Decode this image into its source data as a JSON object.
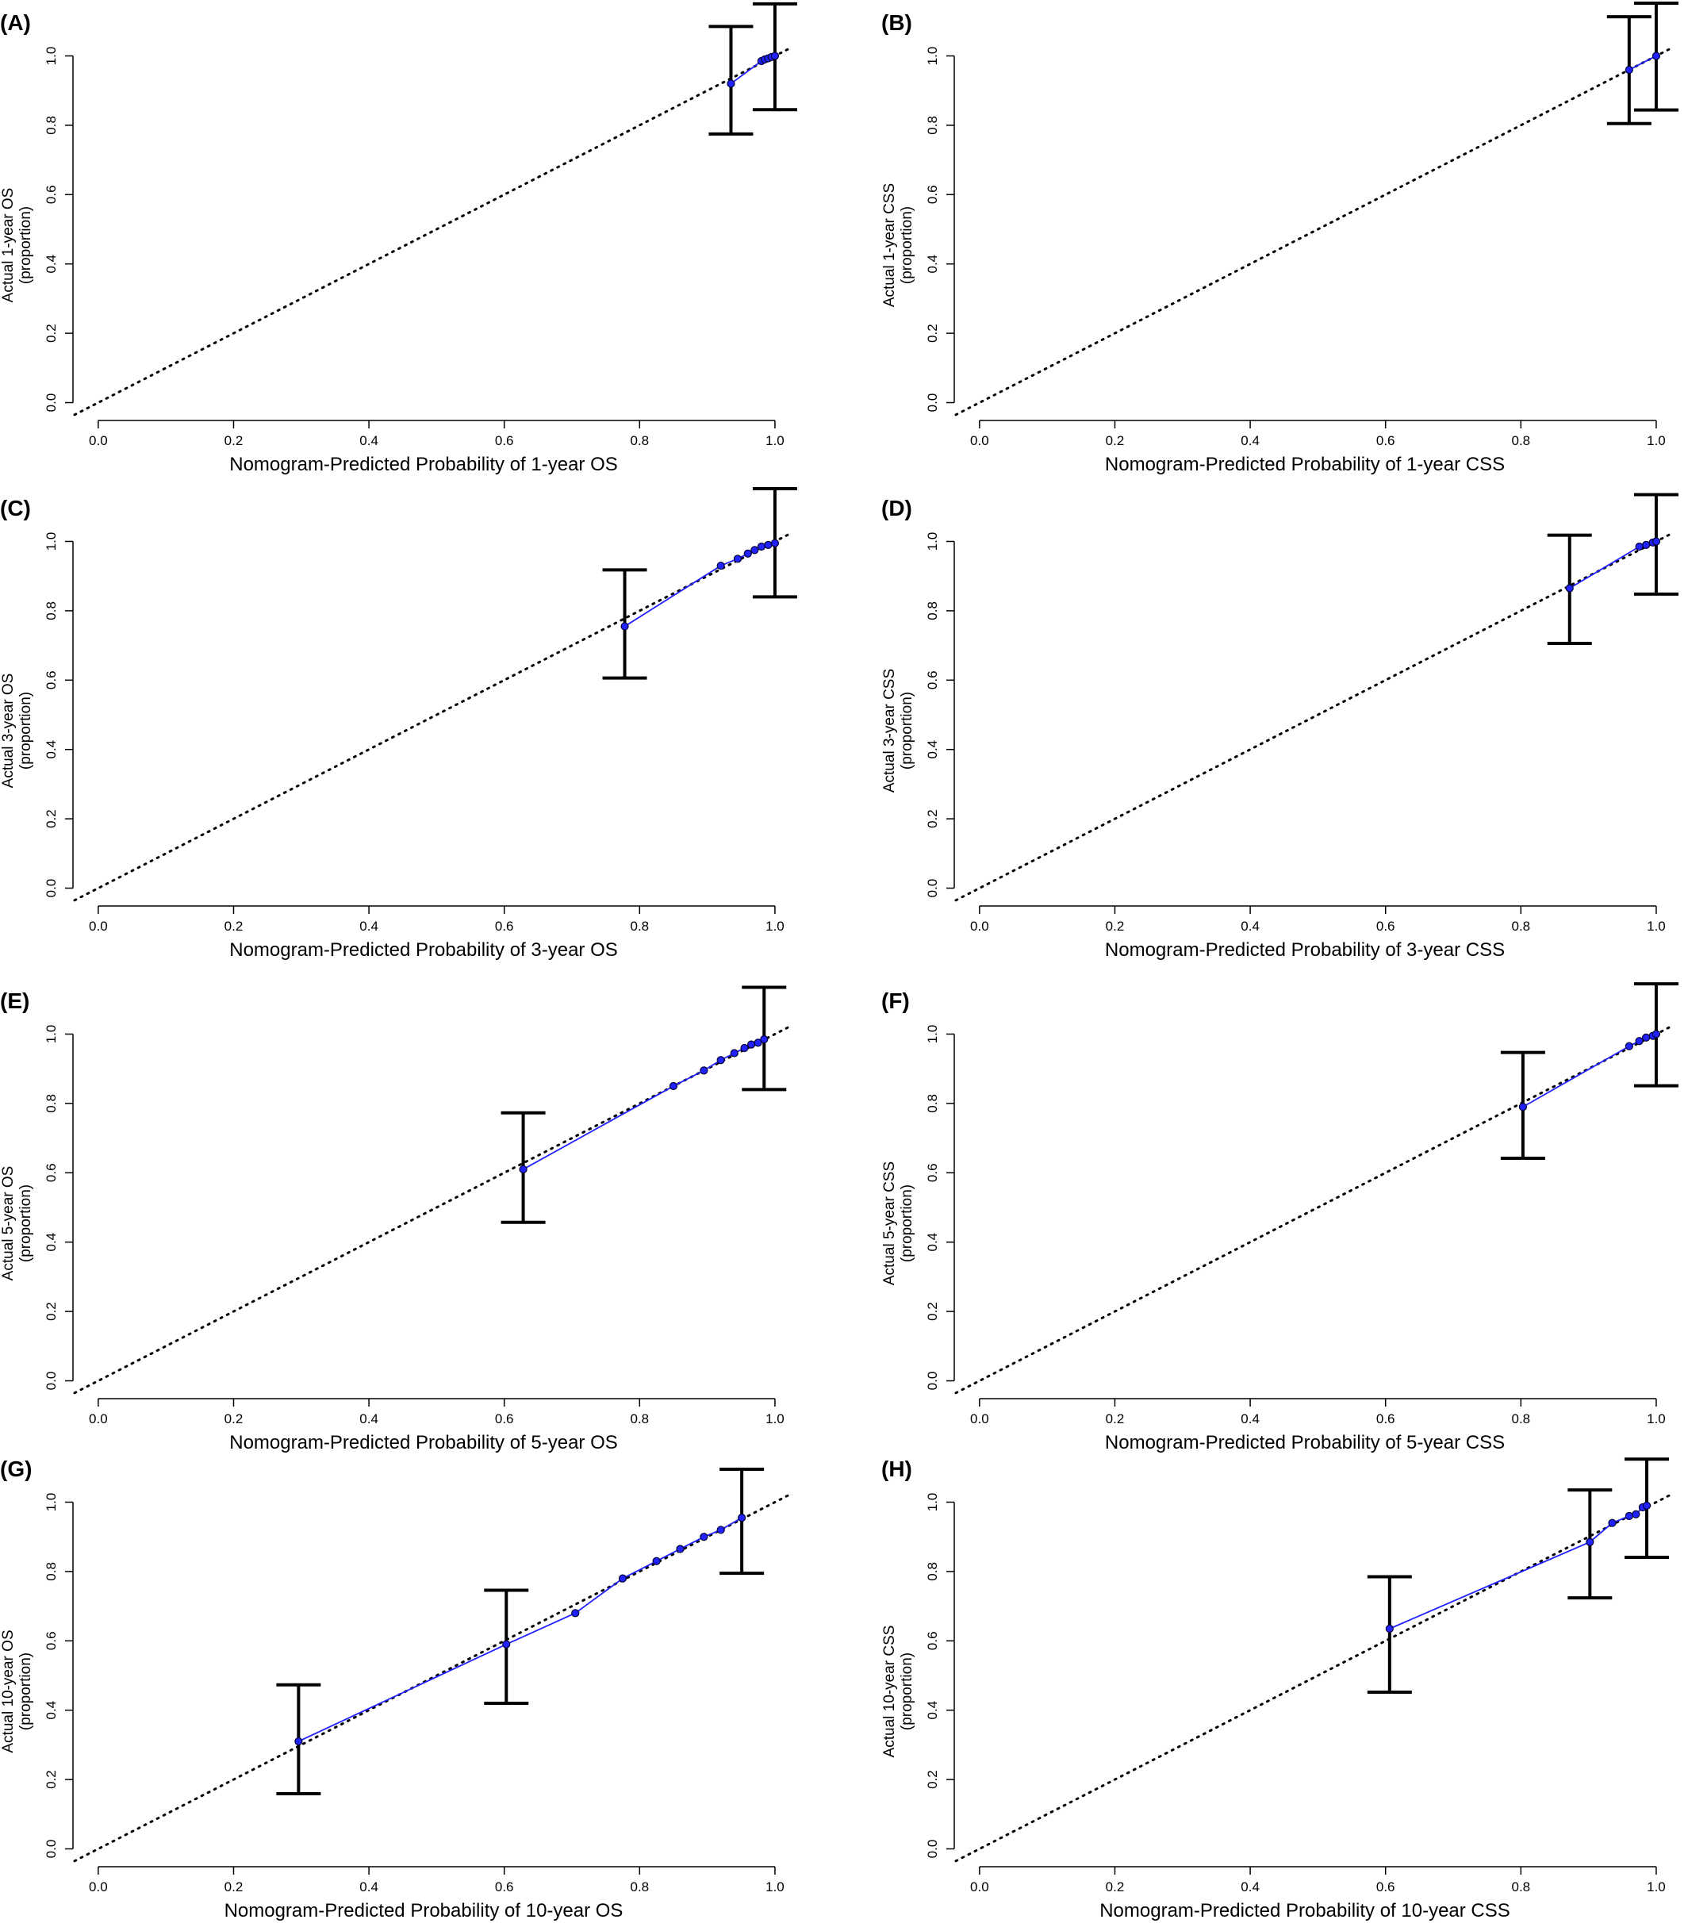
{
  "chart_data": [
    {
      "type": "line",
      "panel_label": "(A)",
      "xlabel": "Nomogram-Predicted Probability of 1-year OS",
      "ylabel": [
        "Actual 1-year OS",
        "(proportion)"
      ],
      "x": [
        0.935,
        0.98,
        0.985,
        0.99,
        0.995,
        1.0
      ],
      "values": [
        0.92,
        0.985,
        0.99,
        0.993,
        0.997,
        1.0
      ],
      "errorbars": {
        "x": [
          0.935,
          1.0
        ],
        "lower": [
          0.775,
          0.845
        ],
        "upper": [
          1.085,
          1.15
        ]
      },
      "color": "#2222ff",
      "diagonal": true,
      "xlim": [
        -0.035,
        1.02
      ],
      "ylim": [
        -0.04,
        1.04
      ],
      "xticks": [
        {
          "value": 0,
          "label": "0.0"
        },
        0.2,
        0.4,
        0.6,
        0.8,
        {
          "value": 1,
          "label": "1.0"
        }
      ],
      "yticks": [
        {
          "value": 0,
          "label": "0.0"
        },
        0.2,
        0.4,
        0.6,
        0.8,
        {
          "value": 1,
          "label": "1.0"
        }
      ]
    },
    {
      "type": "line",
      "panel_label": "(B)",
      "xlabel": "Nomogram-Predicted Probability of 1-year CSS",
      "ylabel": [
        "Actual 1-year CSS",
        "(proportion)"
      ],
      "x": [
        0.96,
        1.0
      ],
      "values": [
        0.96,
        1.0
      ],
      "errorbars": {
        "x": [
          0.96,
          1.0
        ],
        "lower": [
          0.805,
          0.844
        ],
        "upper": [
          1.113,
          1.152
        ]
      },
      "color": "#2222ff",
      "diagonal": true,
      "xlim": [
        -0.035,
        1.02
      ],
      "ylim": [
        -0.04,
        1.04
      ],
      "xticks": [
        {
          "value": 0,
          "label": "0.0"
        },
        0.2,
        0.4,
        0.6,
        0.8,
        {
          "value": 1,
          "label": "1.0"
        }
      ],
      "yticks": [
        {
          "value": 0,
          "label": "0.0"
        },
        0.2,
        0.4,
        0.6,
        0.8,
        {
          "value": 1,
          "label": "1.0"
        }
      ]
    },
    {
      "type": "line",
      "panel_label": "(C)",
      "xlabel": "Nomogram-Predicted Probability of 3-year OS",
      "ylabel": [
        "Actual 3-year OS",
        "(proportion)"
      ],
      "x": [
        0.778,
        0.92,
        0.945,
        0.96,
        0.97,
        0.98,
        0.99,
        1.0
      ],
      "values": [
        0.755,
        0.93,
        0.95,
        0.965,
        0.975,
        0.985,
        0.99,
        0.995
      ],
      "errorbars": {
        "x": [
          0.778,
          1.0
        ],
        "lower": [
          0.606,
          0.84
        ],
        "upper": [
          0.918,
          1.152
        ]
      },
      "color": "#2222ff",
      "diagonal": true,
      "xlim": [
        -0.035,
        1.02
      ],
      "ylim": [
        -0.04,
        1.04
      ],
      "xticks": [
        {
          "value": 0,
          "label": "0.0"
        },
        0.2,
        0.4,
        0.6,
        0.8,
        {
          "value": 1,
          "label": "1.0"
        }
      ],
      "yticks": [
        {
          "value": 0,
          "label": "0.0"
        },
        0.2,
        0.4,
        0.6,
        0.8,
        {
          "value": 1,
          "label": "1.0"
        }
      ]
    },
    {
      "type": "line",
      "panel_label": "(D)",
      "xlabel": "Nomogram-Predicted Probability of 3-year CSS",
      "ylabel": [
        "Actual 3-year CSS",
        "(proportion)"
      ],
      "x": [
        0.872,
        0.975,
        0.985,
        0.995,
        1.0
      ],
      "values": [
        0.865,
        0.985,
        0.99,
        0.997,
        1.0
      ],
      "errorbars": {
        "x": [
          0.872,
          1.0
        ],
        "lower": [
          0.706,
          0.848
        ],
        "upper": [
          1.018,
          1.135
        ]
      },
      "color": "#2222ff",
      "diagonal": true,
      "xlim": [
        -0.035,
        1.02
      ],
      "ylim": [
        -0.04,
        1.04
      ],
      "xticks": [
        {
          "value": 0,
          "label": "0.0"
        },
        0.2,
        0.4,
        0.6,
        0.8,
        {
          "value": 1,
          "label": "1.0"
        }
      ],
      "yticks": [
        {
          "value": 0,
          "label": "0.0"
        },
        0.2,
        0.4,
        0.6,
        0.8,
        {
          "value": 1,
          "label": "1.0"
        }
      ]
    },
    {
      "type": "line",
      "panel_label": "(E)",
      "xlabel": "Nomogram-Predicted Probability of 5-year OS",
      "ylabel": [
        "Actual 5-year OS",
        "(proportion)"
      ],
      "x": [
        0.628,
        0.85,
        0.895,
        0.92,
        0.94,
        0.955,
        0.965,
        0.975,
        0.984
      ],
      "values": [
        0.61,
        0.85,
        0.895,
        0.925,
        0.945,
        0.96,
        0.97,
        0.975,
        0.985
      ],
      "errorbars": {
        "x": [
          0.628,
          0.984
        ],
        "lower": [
          0.457,
          0.84
        ],
        "upper": [
          0.773,
          1.135
        ]
      },
      "color": "#2222ff",
      "diagonal": true,
      "xlim": [
        -0.035,
        1.02
      ],
      "ylim": [
        -0.04,
        1.04
      ],
      "xticks": [
        {
          "value": 0,
          "label": "0.0"
        },
        0.2,
        0.4,
        0.6,
        0.8,
        {
          "value": 1,
          "label": "1.0"
        }
      ],
      "yticks": [
        {
          "value": 0,
          "label": "0.0"
        },
        0.2,
        0.4,
        0.6,
        0.8,
        {
          "value": 1,
          "label": "1.0"
        }
      ]
    },
    {
      "type": "line",
      "panel_label": "(F)",
      "xlabel": "Nomogram-Predicted Probability of 5-year CSS",
      "ylabel": [
        "Actual 5-year CSS",
        "(proportion)"
      ],
      "x": [
        0.803,
        0.96,
        0.975,
        0.985,
        0.995,
        1.0
      ],
      "values": [
        0.79,
        0.965,
        0.98,
        0.99,
        0.995,
        1.0
      ],
      "errorbars": {
        "x": [
          0.803,
          1.0
        ],
        "lower": [
          0.642,
          0.851
        ],
        "upper": [
          0.947,
          1.145
        ]
      },
      "color": "#2222ff",
      "diagonal": true,
      "xlim": [
        -0.035,
        1.02
      ],
      "ylim": [
        -0.04,
        1.04
      ],
      "xticks": [
        {
          "value": 0,
          "label": "0.0"
        },
        0.2,
        0.4,
        0.6,
        0.8,
        {
          "value": 1,
          "label": "1.0"
        }
      ],
      "yticks": [
        {
          "value": 0,
          "label": "0.0"
        },
        0.2,
        0.4,
        0.6,
        0.8,
        {
          "value": 1,
          "label": "1.0"
        }
      ]
    },
    {
      "type": "line",
      "panel_label": "(G)",
      "xlabel": "Nomogram-Predicted Probability of 10-year OS",
      "ylabel": [
        "Actual 10-year OS",
        "(proportion)"
      ],
      "x": [
        0.296,
        0.603,
        0.705,
        0.775,
        0.825,
        0.86,
        0.895,
        0.92,
        0.951
      ],
      "values": [
        0.31,
        0.59,
        0.68,
        0.78,
        0.83,
        0.865,
        0.9,
        0.92,
        0.955
      ],
      "errorbars": {
        "x": [
          0.296,
          0.603,
          0.951
        ],
        "lower": [
          0.159,
          0.42,
          0.795
        ],
        "upper": [
          0.473,
          0.746,
          1.095
        ]
      },
      "color": "#2222ff",
      "diagonal": true,
      "xlim": [
        -0.035,
        1.02
      ],
      "ylim": [
        -0.04,
        1.04
      ],
      "xticks": [
        {
          "value": 0,
          "label": "0.0"
        },
        0.2,
        0.4,
        0.6,
        0.8,
        {
          "value": 1,
          "label": "1.0"
        }
      ],
      "yticks": [
        {
          "value": 0,
          "label": "0.0"
        },
        0.2,
        0.4,
        0.6,
        0.8,
        {
          "value": 1,
          "label": "1.0"
        }
      ]
    },
    {
      "type": "line",
      "panel_label": "(H)",
      "xlabel": "Nomogram-Predicted Probability of 10-year CSS",
      "ylabel": [
        "Actual 10-year CSS",
        "(proportion)"
      ],
      "x": [
        0.606,
        0.902,
        0.935,
        0.96,
        0.97,
        0.98,
        0.986
      ],
      "values": [
        0.635,
        0.885,
        0.94,
        0.96,
        0.965,
        0.985,
        0.99
      ],
      "errorbars": {
        "x": [
          0.606,
          0.902,
          0.986
        ],
        "lower": [
          0.452,
          0.724,
          0.841
        ],
        "upper": [
          0.785,
          1.035,
          1.124
        ]
      },
      "color": "#2222ff",
      "diagonal": true,
      "xlim": [
        -0.035,
        1.02
      ],
      "ylim": [
        -0.04,
        1.04
      ],
      "xticks": [
        {
          "value": 0,
          "label": "0.0"
        },
        0.2,
        0.4,
        0.6,
        0.8,
        {
          "value": 1,
          "label": "1.0"
        }
      ],
      "yticks": [
        {
          "value": 0,
          "label": "0.0"
        },
        0.2,
        0.4,
        0.6,
        0.8,
        {
          "value": 1,
          "label": "1.0"
        }
      ]
    }
  ]
}
